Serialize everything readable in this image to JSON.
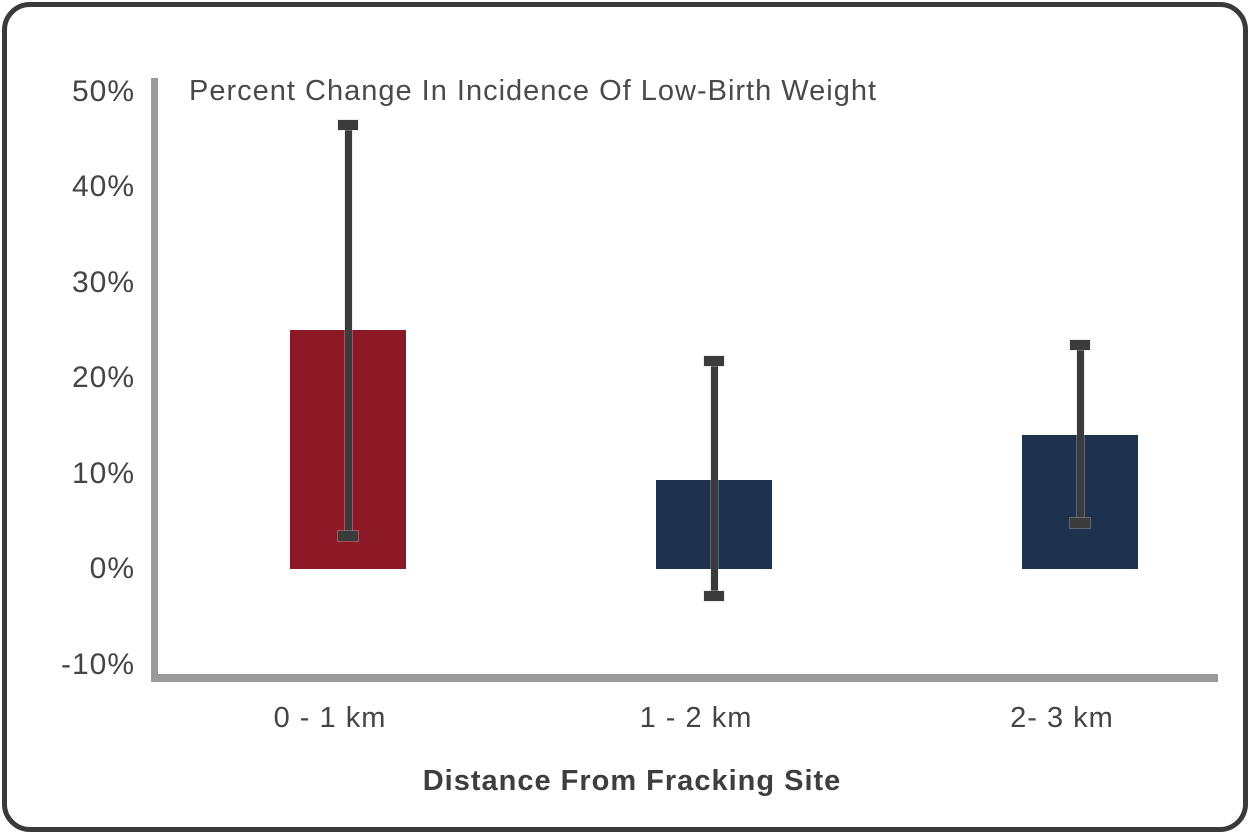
{
  "chart_data": {
    "type": "bar",
    "title": "Percent Change In Incidence Of Low-Birth Weight",
    "xlabel": "Distance From Fracking Site",
    "categories": [
      "0 - 1 km",
      "1 - 2 km",
      "2- 3 km"
    ],
    "values": [
      25,
      9.3,
      14
    ],
    "error_high": [
      46.5,
      21.8,
      23.5
    ],
    "error_low": [
      3.5,
      -2.8,
      4.8
    ],
    "bar_colors": [
      "#8c1826",
      "#1e3250",
      "#1e3250"
    ],
    "ytick_labels": [
      "50%",
      "40%",
      "30%",
      "20%",
      "10%",
      "0%",
      "-10%"
    ],
    "ytick_values": [
      50,
      40,
      30,
      20,
      10,
      0,
      -10
    ],
    "ylim": [
      -10,
      50
    ],
    "grid": false,
    "legend": "none"
  },
  "colors": {
    "card_border": "#3a3a3a",
    "axis": "#9a9a9a",
    "error_bar": "#3b3b3b",
    "tick_text": "#454548",
    "title_text": "#4a4a4d",
    "xlabel_text": "#3e3e41",
    "background": "#ffffff",
    "bar_red": "#8c1826",
    "bar_navy": "#1e3250"
  }
}
